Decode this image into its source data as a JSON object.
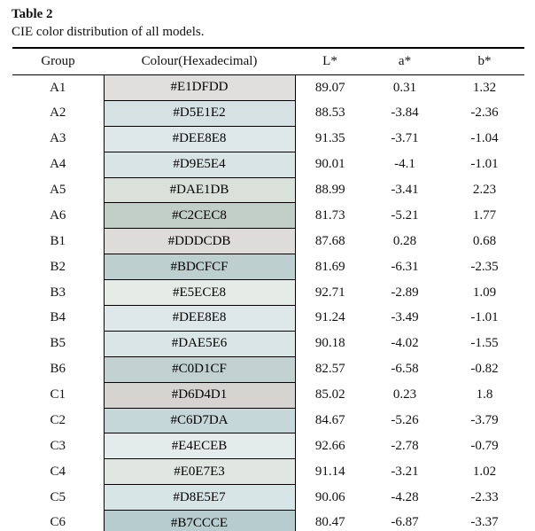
{
  "title": "Table 2",
  "caption": "CIE color distribution of all models.",
  "table": {
    "columns": [
      "Group",
      "Colour(Hexadecimal)",
      "L*",
      "a*",
      "b*"
    ],
    "rows": [
      {
        "group": "A1",
        "hex": "#E1DFDD",
        "L": "89.07",
        "a": "0.31",
        "b": "1.32"
      },
      {
        "group": "A2",
        "hex": "#D5E1E2",
        "L": "88.53",
        "a": "-3.84",
        "b": "-2.36"
      },
      {
        "group": "A3",
        "hex": "#DEE8E8",
        "L": "91.35",
        "a": "-3.71",
        "b": "-1.04"
      },
      {
        "group": "A4",
        "hex": "#D9E5E4",
        "L": "90.01",
        "a": "-4.1",
        "b": "-1.01"
      },
      {
        "group": "A5",
        "hex": "#DAE1DB",
        "L": "88.99",
        "a": "-3.41",
        "b": "2.23"
      },
      {
        "group": "A6",
        "hex": "#C2CEC8",
        "L": "81.73",
        "a": "-5.21",
        "b": "1.77"
      },
      {
        "group": "B1",
        "hex": "#DDDCDB",
        "L": "87.68",
        "a": "0.28",
        "b": "0.68"
      },
      {
        "group": "B2",
        "hex": "#BDCFCF",
        "L": "81.69",
        "a": "-6.31",
        "b": "-2.35"
      },
      {
        "group": "B3",
        "hex": "#E5ECE8",
        "L": "92.71",
        "a": "-2.89",
        "b": "1.09"
      },
      {
        "group": "B4",
        "hex": "#DEE8E8",
        "L": "91.24",
        "a": "-3.49",
        "b": "-1.01"
      },
      {
        "group": "B5",
        "hex": "#DAE5E6",
        "L": "90.18",
        "a": "-4.02",
        "b": "-1.55"
      },
      {
        "group": "B6",
        "hex": "#C0D1CF",
        "L": "82.57",
        "a": "-6.58",
        "b": "-0.82"
      },
      {
        "group": "C1",
        "hex": "#D6D4D1",
        "L": "85.02",
        "a": "0.23",
        "b": "1.8"
      },
      {
        "group": "C2",
        "hex": "#C6D7DA",
        "L": "84.67",
        "a": "-5.26",
        "b": "-3.79"
      },
      {
        "group": "C3",
        "hex": "#E4ECEB",
        "L": "92.66",
        "a": "-2.78",
        "b": "-0.79"
      },
      {
        "group": "C4",
        "hex": "#E0E7E3",
        "L": "91.14",
        "a": "-3.21",
        "b": "1.02"
      },
      {
        "group": "C5",
        "hex": "#D8E5E7",
        "L": "90.06",
        "a": "-4.28",
        "b": "-2.33"
      },
      {
        "group": "C6",
        "hex": "#B7CCCE",
        "L": "80.47",
        "a": "-6.87",
        "b": "-3.37"
      }
    ]
  }
}
